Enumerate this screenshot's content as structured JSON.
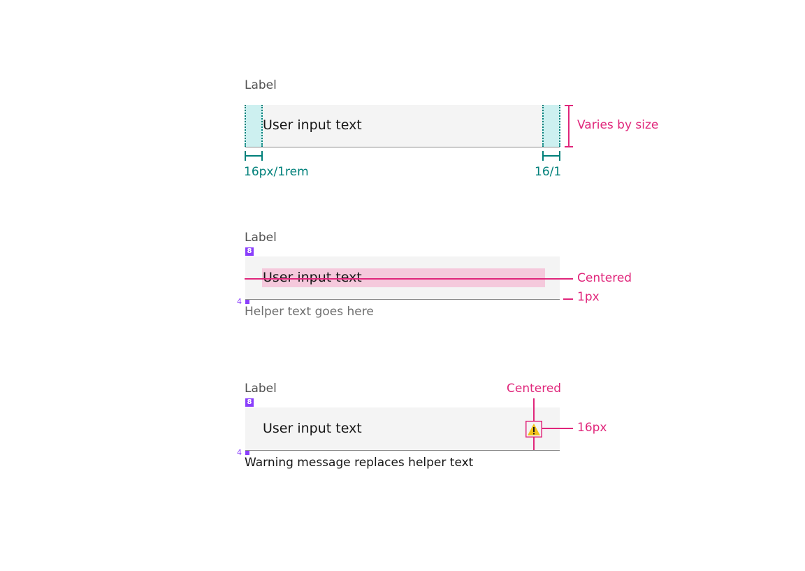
{
  "example1": {
    "label": "Label",
    "value": "User input text",
    "height_note": "Varies by size",
    "padding_left": "16px/1rem",
    "padding_right": "16/1"
  },
  "example2": {
    "label": "Label",
    "spacing_top": "8",
    "value": "User input text",
    "centered": "Centered",
    "border": "1px",
    "spacing_bottom": "4",
    "helper": "Helper text goes here"
  },
  "example3": {
    "label": "Label",
    "spacing_top": "8",
    "value": "User input text",
    "centered": "Centered",
    "icon_size": "16px",
    "spacing_bottom": "4",
    "warning": "Warning message replaces helper text",
    "icon": "warning-icon"
  },
  "colors": {
    "annotation": "#e0267b",
    "padding": "#00807a",
    "spacing": "#8a3ffc",
    "warning": "#f1c21b"
  }
}
